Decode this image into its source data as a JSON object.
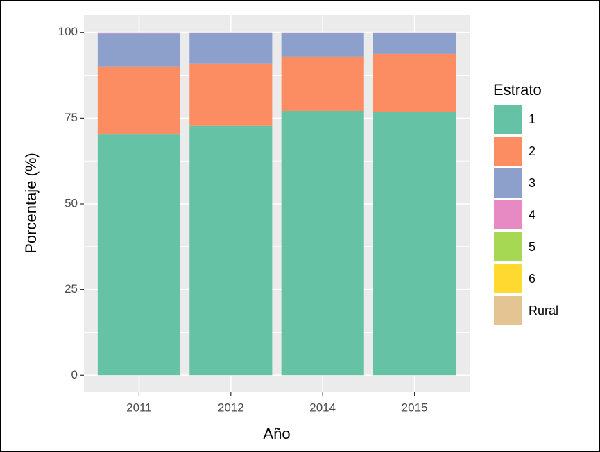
{
  "chart_data": {
    "type": "stacked_bar",
    "x_label": "Año",
    "y_label": "Porcentaje (%)",
    "legend_title": "Estrato",
    "categories": [
      "2011",
      "2012",
      "2014",
      "2015"
    ],
    "series": [
      {
        "name": "1",
        "color": "#66c2a5",
        "values": [
          70.2,
          72.7,
          77.1,
          76.7
        ]
      },
      {
        "name": "2",
        "color": "#fc8d62",
        "values": [
          19.9,
          18.2,
          15.8,
          17.0
        ]
      },
      {
        "name": "3",
        "color": "#8da0cb",
        "values": [
          9.6,
          9.0,
          7.0,
          6.2
        ]
      },
      {
        "name": "4",
        "color": "#e78ac3",
        "values": [
          0.3,
          0.1,
          0.1,
          0.1
        ]
      },
      {
        "name": "5",
        "color": "#a6d854",
        "values": [
          0,
          0,
          0,
          0
        ]
      },
      {
        "name": "6",
        "color": "#ffd92f",
        "values": [
          0,
          0,
          0,
          0
        ]
      },
      {
        "name": "Rural",
        "color": "#e5c494",
        "values": [
          0,
          0,
          0,
          0
        ]
      }
    ],
    "ylim": [
      -5,
      105
    ],
    "yticks": [
      0,
      25,
      50,
      75,
      100
    ],
    "grid": true,
    "legend": "right"
  }
}
